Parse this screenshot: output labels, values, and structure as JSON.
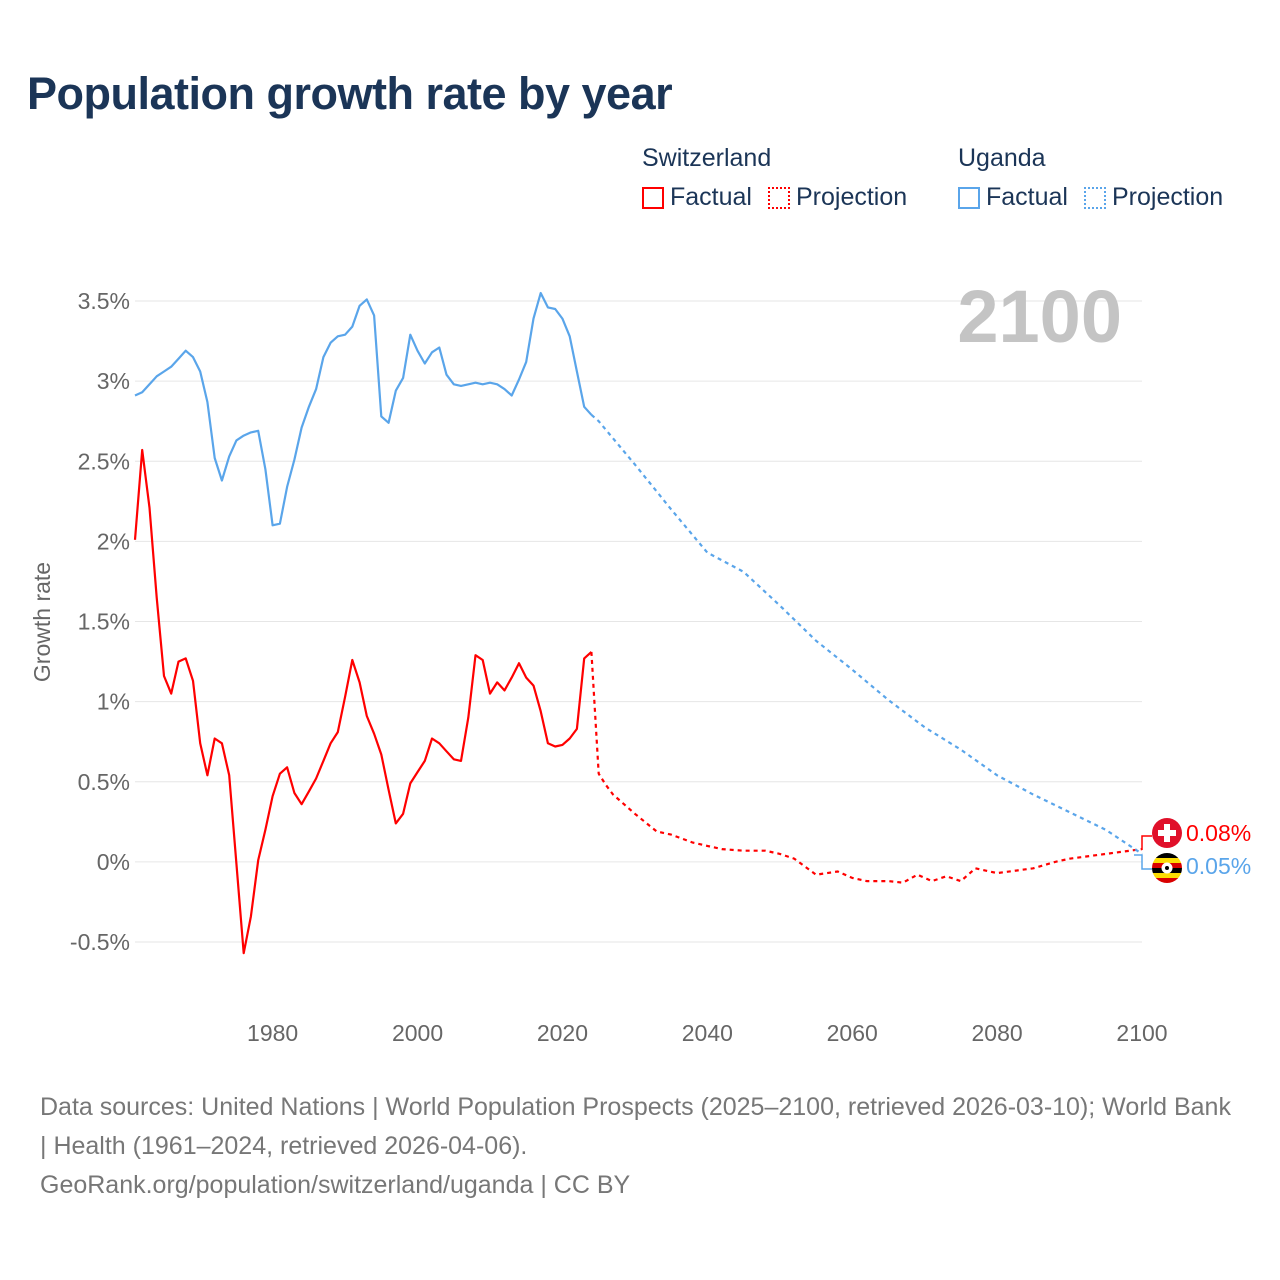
{
  "title": "Population growth rate by year",
  "legend": {
    "groups": [
      {
        "name": "Switzerland",
        "factual": "Factual",
        "projection": "Projection",
        "color": "#ff0000"
      },
      {
        "name": "Uganda",
        "factual": "Factual",
        "projection": "Projection",
        "color": "#5aa5ea"
      }
    ]
  },
  "year_label": "2100",
  "end_labels": {
    "switzerland": "0.08%",
    "uganda": "0.05%"
  },
  "footer": {
    "line1": "Data sources: United Nations | World Population Prospects (2025–2100, retrieved 2026-03-10); World Bank | Health (1961–2024, retrieved 2026-04-06).",
    "line2": "GeoRank.org/population/switzerland/uganda | CC BY"
  },
  "chart_data": {
    "type": "line",
    "title": "Population growth rate by year",
    "xlabel": "",
    "ylabel": "Growth rate",
    "xlim": [
      1961,
      2100
    ],
    "ylim": [
      -0.5,
      3.5
    ],
    "x_ticks": [
      "1980",
      "2000",
      "2020",
      "2040",
      "2060",
      "2080",
      "2100"
    ],
    "y_ticks": [
      "-0.5%",
      "0%",
      "0.5%",
      "1%",
      "1.5%",
      "2%",
      "2.5%",
      "3%",
      "3.5%"
    ],
    "grid": true,
    "legend_placement": "top-right",
    "series": [
      {
        "name": "Switzerland Factual",
        "color": "#ff0000",
        "style": "solid",
        "x_start": 1961,
        "values": [
          2.01,
          2.57,
          2.21,
          1.65,
          1.16,
          1.05,
          1.25,
          1.27,
          1.13,
          0.74,
          0.54,
          0.77,
          0.74,
          0.54,
          -0.01,
          -0.57,
          -0.34,
          0.01,
          0.2,
          0.41,
          0.55,
          0.59,
          0.43,
          0.36,
          0.44,
          0.52,
          0.63,
          0.74,
          0.81,
          1.03,
          1.26,
          1.12,
          0.91,
          0.8,
          0.67,
          0.45,
          0.24,
          0.3,
          0.49,
          0.56,
          0.63,
          0.77,
          0.74,
          0.69,
          0.64,
          0.63,
          0.9,
          1.29,
          1.26,
          1.05,
          1.12,
          1.07,
          1.15,
          1.24,
          1.15,
          1.1,
          0.94,
          0.74,
          0.72,
          0.73,
          0.77,
          0.83,
          1.27,
          1.31
        ]
      },
      {
        "name": "Switzerland Projection",
        "color": "#ff0000",
        "style": "dotted",
        "points": [
          [
            2024,
            1.31
          ],
          [
            2025,
            0.55
          ],
          [
            2026,
            0.48
          ],
          [
            2027,
            0.42
          ],
          [
            2028,
            0.38
          ],
          [
            2030,
            0.3
          ],
          [
            2033,
            0.19
          ],
          [
            2035,
            0.17
          ],
          [
            2038,
            0.12
          ],
          [
            2040,
            0.1
          ],
          [
            2042,
            0.08
          ],
          [
            2045,
            0.07
          ],
          [
            2048,
            0.07
          ],
          [
            2050,
            0.05
          ],
          [
            2052,
            0.02
          ],
          [
            2055,
            -0.08
          ],
          [
            2058,
            -0.06
          ],
          [
            2060,
            -0.1
          ],
          [
            2062,
            -0.12
          ],
          [
            2065,
            -0.12
          ],
          [
            2067,
            -0.13
          ],
          [
            2069,
            -0.08
          ],
          [
            2071,
            -0.12
          ],
          [
            2073,
            -0.09
          ],
          [
            2075,
            -0.12
          ],
          [
            2077,
            -0.04
          ],
          [
            2080,
            -0.07
          ],
          [
            2085,
            -0.04
          ],
          [
            2088,
            0.0
          ],
          [
            2090,
            0.02
          ],
          [
            2095,
            0.05
          ],
          [
            2100,
            0.08
          ]
        ]
      },
      {
        "name": "Uganda Factual",
        "color": "#5aa5ea",
        "style": "solid",
        "x_start": 1961,
        "values": [
          2.91,
          2.93,
          2.98,
          3.03,
          3.06,
          3.09,
          3.14,
          3.19,
          3.15,
          3.06,
          2.87,
          2.52,
          2.38,
          2.53,
          2.63,
          2.66,
          2.68,
          2.69,
          2.45,
          2.1,
          2.11,
          2.34,
          2.51,
          2.71,
          2.84,
          2.95,
          3.15,
          3.24,
          3.28,
          3.29,
          3.34,
          3.47,
          3.51,
          3.41,
          2.78,
          2.74,
          2.94,
          3.02,
          3.29,
          3.19,
          3.11,
          3.18,
          3.21,
          3.04,
          2.98,
          2.97,
          2.98,
          2.99,
          2.98,
          2.99,
          2.98,
          2.95,
          2.91,
          3.01,
          3.12,
          3.39,
          3.55,
          3.46,
          3.45,
          3.39,
          3.28,
          3.06,
          2.84,
          2.79
        ]
      },
      {
        "name": "Uganda Projection",
        "color": "#5aa5ea",
        "style": "dotted",
        "points": [
          [
            2024,
            2.79
          ],
          [
            2025,
            2.75
          ],
          [
            2030,
            2.48
          ],
          [
            2035,
            2.2
          ],
          [
            2040,
            1.93
          ],
          [
            2045,
            1.81
          ],
          [
            2050,
            1.6
          ],
          [
            2055,
            1.38
          ],
          [
            2060,
            1.2
          ],
          [
            2065,
            1.01
          ],
          [
            2070,
            0.84
          ],
          [
            2075,
            0.7
          ],
          [
            2080,
            0.54
          ],
          [
            2085,
            0.42
          ],
          [
            2090,
            0.31
          ],
          [
            2095,
            0.2
          ],
          [
            2100,
            0.05
          ]
        ]
      }
    ]
  }
}
